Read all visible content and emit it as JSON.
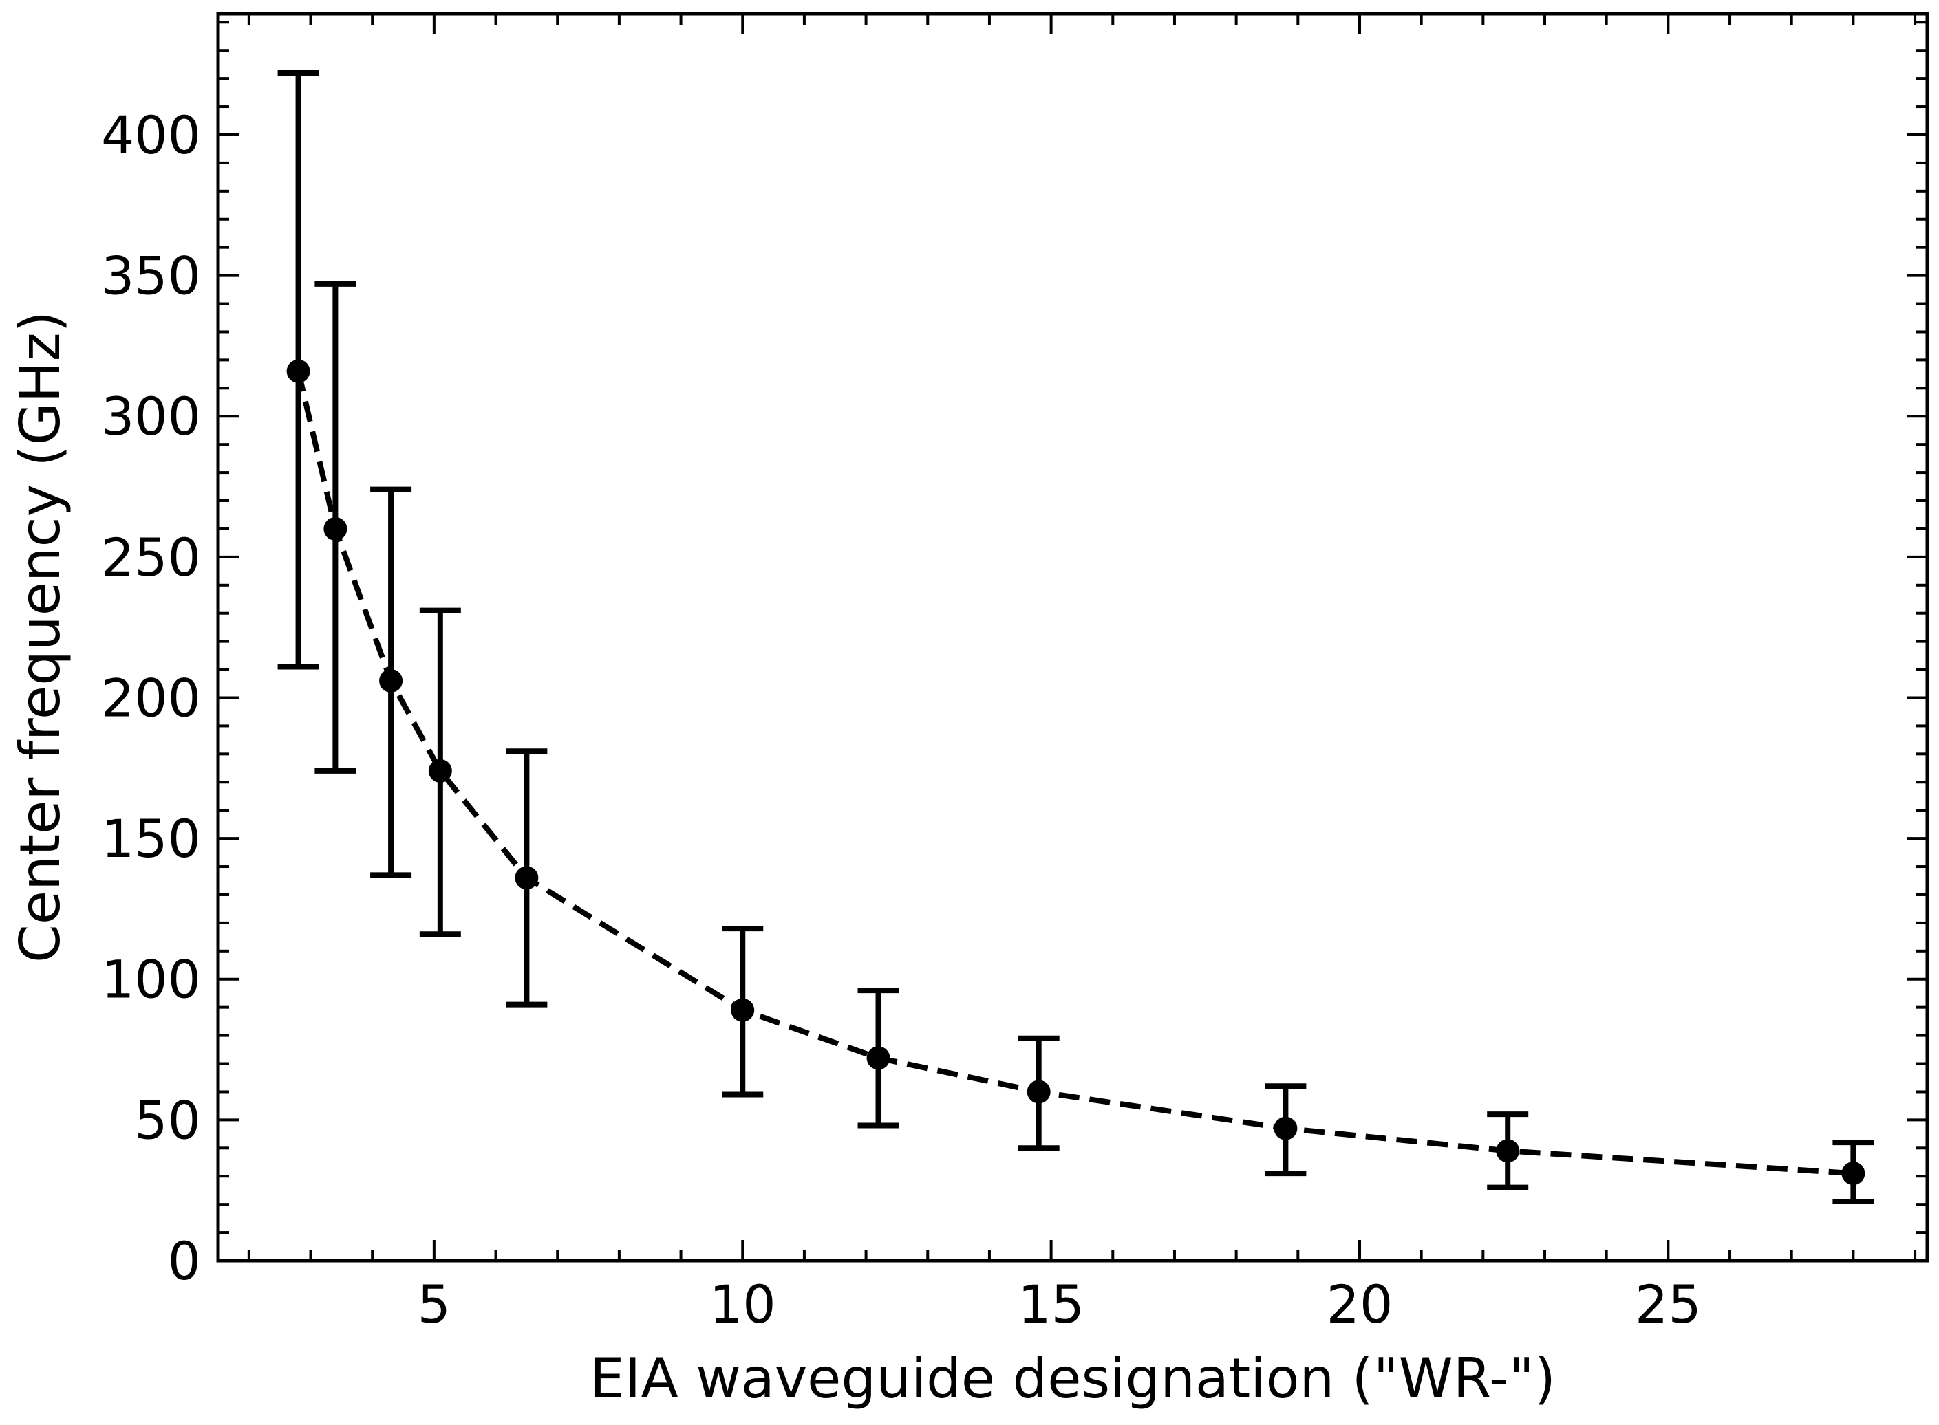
{
  "chart_data": {
    "type": "scatter",
    "title": "",
    "xlabel": "EIA waveguide designation (\"WR-\")",
    "ylabel": "Center frequency (GHz)",
    "xlim": [
      1.5,
      29.2
    ],
    "ylim": [
      0,
      443
    ],
    "x_ticks": [
      5,
      10,
      15,
      20,
      25
    ],
    "y_ticks": [
      0,
      50,
      100,
      150,
      200,
      250,
      300,
      350,
      400
    ],
    "x_minor_step": 1,
    "y_minor_step": 10,
    "grid": false,
    "legend": "none",
    "series": [
      {
        "style": "points-with-errorbars",
        "color": "#000000",
        "points": [
          {
            "x": 2.8,
            "y": 316,
            "y_low": 211,
            "y_high": 422
          },
          {
            "x": 3.4,
            "y": 260,
            "y_low": 174,
            "y_high": 347
          },
          {
            "x": 4.3,
            "y": 206,
            "y_low": 137,
            "y_high": 274
          },
          {
            "x": 5.1,
            "y": 174,
            "y_low": 116,
            "y_high": 231
          },
          {
            "x": 6.5,
            "y": 136,
            "y_low": 91,
            "y_high": 181
          },
          {
            "x": 10,
            "y": 89,
            "y_low": 59,
            "y_high": 118
          },
          {
            "x": 12.2,
            "y": 72,
            "y_low": 48,
            "y_high": 96
          },
          {
            "x": 14.8,
            "y": 60,
            "y_low": 40,
            "y_high": 79
          },
          {
            "x": 18.8,
            "y": 47,
            "y_low": 31,
            "y_high": 62
          },
          {
            "x": 22.4,
            "y": 39,
            "y_low": 26,
            "y_high": 52
          },
          {
            "x": 28,
            "y": 31,
            "y_low": 21,
            "y_high": 42
          }
        ]
      },
      {
        "style": "dashed-line",
        "color": "#000000",
        "x": [
          2.8,
          3.4,
          4.3,
          5.1,
          6.5,
          10,
          12.2,
          14.8,
          18.8,
          22.4,
          28
        ],
        "y": [
          316,
          260,
          206,
          174,
          136,
          89,
          72,
          60,
          47,
          39,
          31
        ]
      }
    ]
  }
}
